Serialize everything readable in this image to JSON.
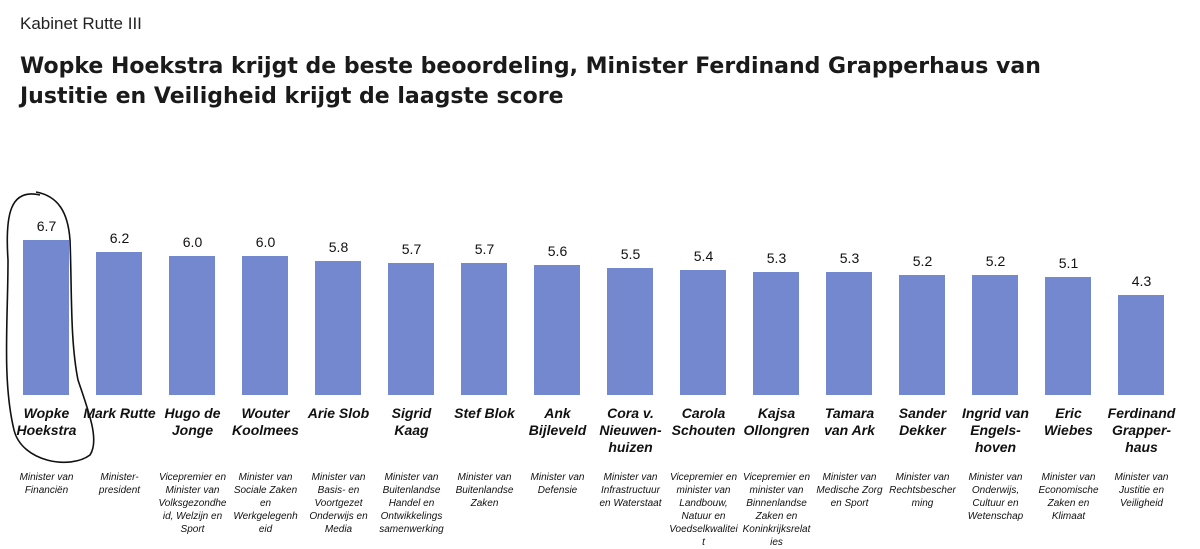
{
  "chart_data": {
    "type": "bar",
    "supertitle": "Kabinet Rutte III",
    "title": "Wopke Hoekstra krijgt de beste beoordeling, Minister Ferdinand Grapperhaus van Justitie en Veiligheid krijgt de laagste score",
    "categories": [
      "Wopke Hoekstra",
      "Mark Rutte",
      "Hugo de Jonge",
      "Wouter Koolmees",
      "Arie Slob",
      "Sigrid Kaag",
      "Stef Blok",
      "Ank Bijleveld",
      "Cora v. Nieuwen-huizen",
      "Carola Schouten",
      "Kajsa Ollongren",
      "Tamara van Ark",
      "Sander Dekker",
      "Ingrid van Engels-hoven",
      "Eric Wiebes",
      "Ferdinand Grapper-haus"
    ],
    "descriptions": [
      "Minister van Financiën",
      "Minister-president",
      "Vicepremier en Minister van Volksgezondheid, Welzijn en Sport",
      "Minister van Sociale Zaken en Werkgelegenheid",
      "Minister van Basis- en Voortgezet Onderwijs en Media",
      "Minister van Buitenlandse Handel en Ontwikkelings samenwerking",
      "Minister van Buitenlandse Zaken",
      "Minister van Defensie",
      "Minister van Infrastructuur en Waterstaat",
      "Vicepremier en minister van Landbouw, Natuur en Voedselkwaliteit",
      "Vicepremier en minister van Binnenlandse Zaken en Koninkrijksrelaties",
      "Minister van Medische Zorg en Sport",
      "Minister van Rechtsbescherming",
      "Minister van Onderwijs, Cultuur en Wetenschap",
      "Minister van Economische Zaken en Klimaat",
      "Minister van Justitie en Veiligheid"
    ],
    "values": [
      6.7,
      6.2,
      6.0,
      6.0,
      5.8,
      5.7,
      5.7,
      5.6,
      5.5,
      5.4,
      5.3,
      5.3,
      5.2,
      5.2,
      5.1,
      4.3
    ],
    "value_labels": [
      "6.7",
      "6.2",
      "6.0",
      "6.0",
      "5.8",
      "5.7",
      "5.7",
      "5.6",
      "5.5",
      "5.4",
      "5.3",
      "5.3",
      "5.2",
      "5.2",
      "5.1",
      "4.3"
    ],
    "color": "#7388cf",
    "ylim": [
      0,
      7
    ]
  }
}
